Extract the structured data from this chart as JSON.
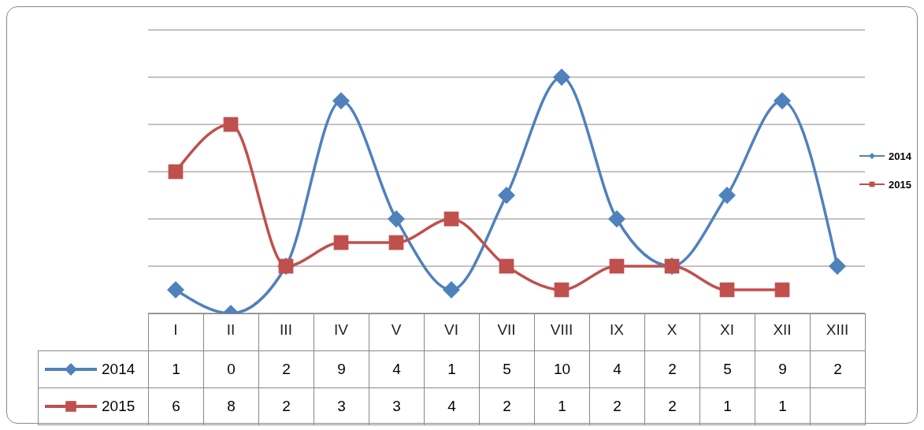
{
  "chart_data": {
    "type": "line",
    "categories": [
      "I",
      "II",
      "III",
      "IV",
      "V",
      "VI",
      "VII",
      "VIII",
      "IX",
      "X",
      "XI",
      "XII",
      "XIII"
    ],
    "series": [
      {
        "name": "2014",
        "color": "#4f81bd",
        "marker": "diamond",
        "values": [
          1,
          0,
          2,
          9,
          4,
          1,
          5,
          10,
          4,
          2,
          5,
          9,
          2
        ]
      },
      {
        "name": "2015",
        "color": "#c0504d",
        "marker": "square",
        "values": [
          6,
          8,
          2,
          3,
          3,
          4,
          2,
          1,
          2,
          2,
          1,
          1,
          null
        ]
      }
    ],
    "ylim": [
      0,
      12
    ],
    "yticks": [
      {
        "value": 0,
        "label": null
      },
      {
        "value": 2,
        "label": null
      },
      {
        "value": 4,
        "label": null
      },
      {
        "value": 6,
        "label": null
      },
      {
        "value": 8,
        "label": null
      },
      {
        "value": 10,
        "label": null
      },
      {
        "value": 12,
        "label": null
      }
    ],
    "tick_labels": "x",
    "grid": "y",
    "legend": "right",
    "data_labels": true
  }
}
